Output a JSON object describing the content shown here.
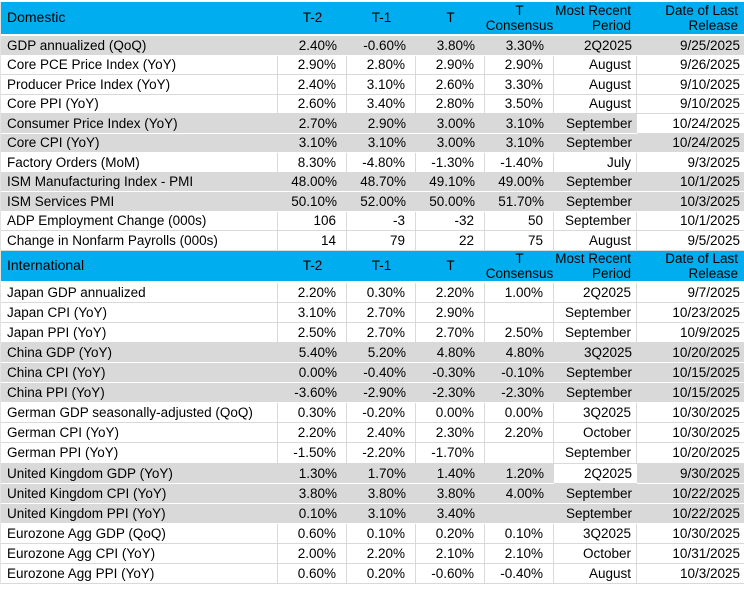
{
  "colors": {
    "header_bg": "#00AEEF",
    "band_gray": "#D9D9D9",
    "grid": "#D9D9D9",
    "text": "#000000"
  },
  "table": {
    "columns": [
      "T-2",
      "T-1",
      "T",
      "T Consensus",
      "Most Recent Period",
      "Date of Last Release"
    ],
    "sections": [
      {
        "title": "Domestic",
        "rows": [
          {
            "label": "GDP annualized (QoQ)",
            "t2": "2.40%",
            "t1": "-0.60%",
            "t": "3.80%",
            "cons": "3.30%",
            "period": "2Q2025",
            "date": "9/25/2025",
            "band": "gray"
          },
          {
            "label": "Core PCE Price Index (YoY)",
            "t2": "2.90%",
            "t1": "2.80%",
            "t": "2.90%",
            "cons": "2.90%",
            "period": "August",
            "date": "9/26/2025",
            "band": "white"
          },
          {
            "label": "Producer Price Index (YoY)",
            "t2": "2.40%",
            "t1": "3.10%",
            "t": "2.60%",
            "cons": "3.30%",
            "period": "August",
            "date": "9/10/2025",
            "band": "white"
          },
          {
            "label": "Core PPI (YoY)",
            "t2": "2.60%",
            "t1": "3.40%",
            "t": "2.80%",
            "cons": "3.50%",
            "period": "August",
            "date": "9/10/2025",
            "band": "white"
          },
          {
            "label": "Consumer Price Index (YoY)",
            "t2": "2.70%",
            "t1": "2.90%",
            "t": "3.00%",
            "cons": "3.10%",
            "period": "September",
            "date": "10/24/2025",
            "band": "gray",
            "date_bg": "white"
          },
          {
            "label": "Core CPI  (YoY)",
            "t2": "3.10%",
            "t1": "3.10%",
            "t": "3.00%",
            "cons": "3.10%",
            "period": "September",
            "date": "10/24/2025",
            "band": "gray"
          },
          {
            "label": "Factory Orders (MoM)",
            "t2": "8.30%",
            "t1": "-4.80%",
            "t": "-1.30%",
            "cons": "-1.40%",
            "period": "July",
            "date": "9/3/2025",
            "band": "white"
          },
          {
            "label": "ISM Manufacturing Index - PMI",
            "t2": "48.00%",
            "t1": "48.70%",
            "t": "49.10%",
            "cons": "49.00%",
            "period": "September",
            "date": "10/1/2025",
            "band": "gray"
          },
          {
            "label": "ISM Services PMI",
            "t2": "50.10%",
            "t1": "52.00%",
            "t": "50.00%",
            "cons": "51.70%",
            "period": "September",
            "date": "10/3/2025",
            "band": "gray"
          },
          {
            "label": "ADP Employment Change (000s)",
            "t2": "106",
            "t1": "-3",
            "t": "-32",
            "cons": "50",
            "period": "September",
            "date": "10/1/2025",
            "band": "white"
          },
          {
            "label": "Change in Nonfarm Payrolls (000s)",
            "t2": "14",
            "t1": "79",
            "t": "22",
            "cons": "75",
            "period": "August",
            "date": "9/5/2025",
            "band": "white"
          }
        ]
      },
      {
        "title": "International",
        "rows": [
          {
            "label": "Japan GDP annualized",
            "t2": "2.20%",
            "t1": "0.30%",
            "t": "2.20%",
            "cons": "1.00%",
            "period": "2Q2025",
            "date": "9/7/2025",
            "band": "white"
          },
          {
            "label": "Japan CPI (YoY)",
            "t2": "3.10%",
            "t1": "2.70%",
            "t": "2.90%",
            "cons": "",
            "period": "September",
            "date": "10/23/2025",
            "band": "white"
          },
          {
            "label": "Japan PPI (YoY)",
            "t2": "2.50%",
            "t1": "2.70%",
            "t": "2.70%",
            "cons": "2.50%",
            "period": "September",
            "date": "10/9/2025",
            "band": "white"
          },
          {
            "label": "China GDP (YoY)",
            "t2": "5.40%",
            "t1": "5.20%",
            "t": "4.80%",
            "cons": "4.80%",
            "period": "3Q2025",
            "date": "10/20/2025",
            "band": "gray"
          },
          {
            "label": "China CPI (YoY)",
            "t2": "0.00%",
            "t1": "-0.40%",
            "t": "-0.30%",
            "cons": "-0.10%",
            "period": "September",
            "date": "10/15/2025",
            "band": "gray"
          },
          {
            "label": "China PPI (YoY)",
            "t2": "-3.60%",
            "t1": "-2.90%",
            "t": "-2.30%",
            "cons": "-2.30%",
            "period": "September",
            "date": "10/15/2025",
            "band": "gray"
          },
          {
            "label": "German GDP seasonally-adjusted (QoQ)",
            "t2": "0.30%",
            "t1": "-0.20%",
            "t": "0.00%",
            "cons": "0.00%",
            "period": "3Q2025",
            "date": "10/30/2025",
            "band": "white"
          },
          {
            "label": "German CPI (YoY)",
            "t2": "2.20%",
            "t1": "2.40%",
            "t": "2.30%",
            "cons": "2.20%",
            "period": "October",
            "date": "10/30/2025",
            "band": "white"
          },
          {
            "label": "German PPI (YoY)",
            "t2": "-1.50%",
            "t1": "-2.20%",
            "t": "-1.70%",
            "cons": "",
            "period": "September",
            "date": "10/20/2025",
            "band": "white"
          },
          {
            "label": "United Kingdom GDP (YoY)",
            "t2": "1.30%",
            "t1": "1.70%",
            "t": "1.40%",
            "cons": "1.20%",
            "period": "2Q2025",
            "date": "9/30/2025",
            "band": "gray",
            "period_bg": "white"
          },
          {
            "label": "United Kingdom CPI (YoY)",
            "t2": "3.80%",
            "t1": "3.80%",
            "t": "3.80%",
            "cons": "4.00%",
            "period": "September",
            "date": "10/22/2025",
            "band": "gray"
          },
          {
            "label": "United Kingdom  PPI (YoY)",
            "t2": "0.10%",
            "t1": "3.10%",
            "t": "3.40%",
            "cons": "",
            "period": "September",
            "date": "10/22/2025",
            "band": "gray"
          },
          {
            "label": "Eurozone Agg GDP (QoQ)",
            "t2": "0.60%",
            "t1": "0.10%",
            "t": "0.20%",
            "cons": "0.10%",
            "period": "3Q2025",
            "date": "10/30/2025",
            "band": "white"
          },
          {
            "label": "Eurozone Agg CPI (YoY)",
            "t2": "2.00%",
            "t1": "2.20%",
            "t": "2.10%",
            "cons": "2.10%",
            "period": "October",
            "date": "10/31/2025",
            "band": "white"
          },
          {
            "label": "Eurozone Agg PPI (YoY)",
            "t2": "0.60%",
            "t1": "0.20%",
            "t": "-0.60%",
            "cons": "-0.40%",
            "period": "August",
            "date": "10/3/2025",
            "band": "white"
          }
        ]
      }
    ]
  }
}
